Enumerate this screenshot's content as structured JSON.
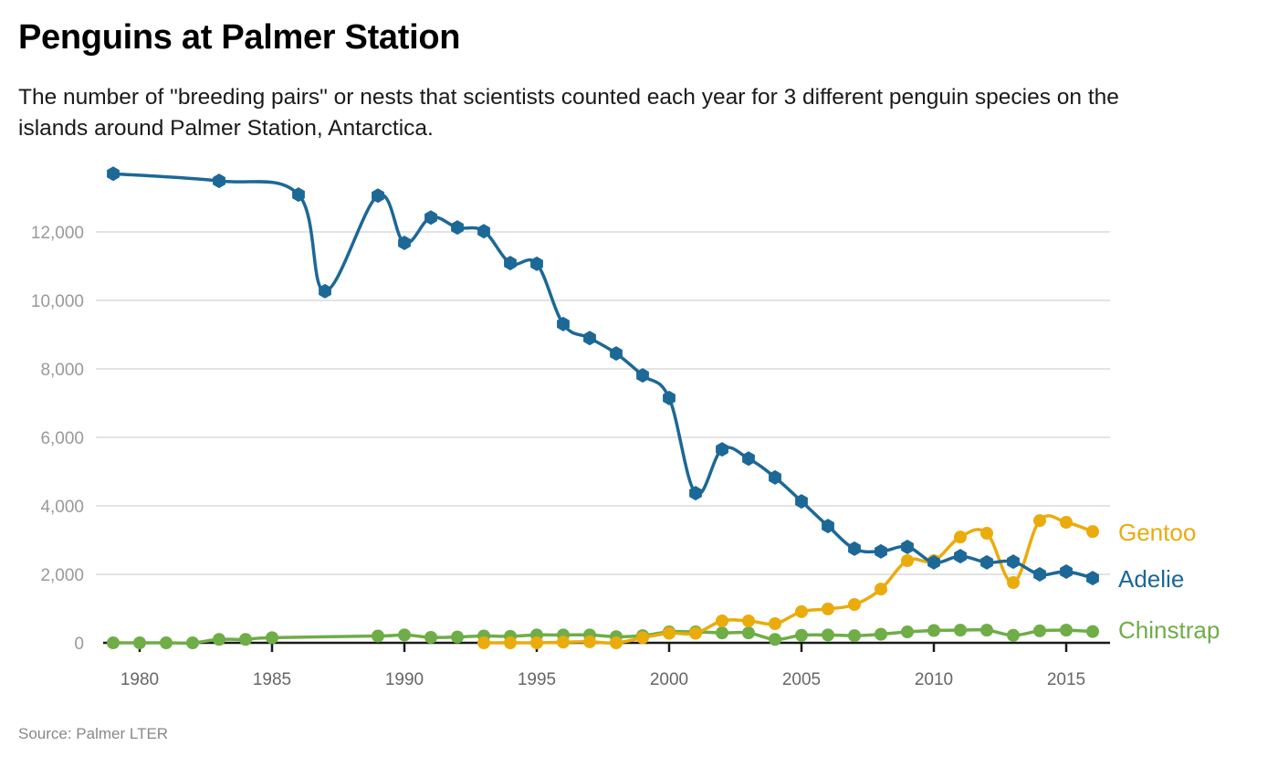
{
  "chart_data": {
    "type": "line",
    "title": "Penguins at Palmer Station",
    "subtitle": "The number of \"breeding pairs\" or nests that scientists counted each year for 3 different penguin species on the islands around Palmer Station, Antarctica.",
    "source": "Source: Palmer LTER",
    "xlabel": "",
    "ylabel": "",
    "xlim": [
      1978.6,
      2016.8
    ],
    "ylim": [
      0,
      14000
    ],
    "grid": true,
    "legend": "right-direct-labels",
    "y_ticks": [
      {
        "value": 0,
        "label": "0"
      },
      {
        "value": 2000,
        "label": "2,000"
      },
      {
        "value": 4000,
        "label": "4,000"
      },
      {
        "value": 6000,
        "label": "6,000"
      },
      {
        "value": 8000,
        "label": "8,000"
      },
      {
        "value": 10000,
        "label": "10,000"
      },
      {
        "value": 12000,
        "label": "12,000"
      }
    ],
    "x_ticks": [
      {
        "value": 1980,
        "label": "1980"
      },
      {
        "value": 1985,
        "label": "1985"
      },
      {
        "value": 1990,
        "label": "1990"
      },
      {
        "value": 1995,
        "label": "1995"
      },
      {
        "value": 2000,
        "label": "2000"
      },
      {
        "value": 2005,
        "label": "2005"
      },
      {
        "value": 2010,
        "label": "2010"
      },
      {
        "value": 2015,
        "label": "2015"
      }
    ],
    "series": [
      {
        "name": "Chinstrap",
        "color": "#6fad46",
        "marker": "circle",
        "x": [
          1979,
          1980,
          1981,
          1982,
          1983,
          1984,
          1985,
          1989,
          1990,
          1991,
          1992,
          1993,
          1994,
          1995,
          1996,
          1997,
          1998,
          1999,
          2000,
          2001,
          2002,
          2003,
          2004,
          2005,
          2006,
          2007,
          2008,
          2009,
          2010,
          2011,
          2012,
          2013,
          2014,
          2015,
          2016
        ],
        "values": [
          0,
          0,
          0,
          0,
          100,
          100,
          150,
          200,
          230,
          160,
          170,
          200,
          190,
          230,
          230,
          230,
          180,
          210,
          320,
          320,
          290,
          290,
          100,
          220,
          230,
          210,
          250,
          320,
          360,
          370,
          370,
          220,
          350,
          370,
          330
        ]
      },
      {
        "name": "Gentoo",
        "color": "#eaac0c",
        "marker": "circle",
        "x": [
          1993,
          1994,
          1995,
          1996,
          1997,
          1998,
          1999,
          2000,
          2001,
          2002,
          2003,
          2004,
          2005,
          2006,
          2007,
          2008,
          2009,
          2010,
          2011,
          2012,
          2013,
          2014,
          2015,
          2016
        ],
        "values": [
          0,
          0,
          0,
          20,
          30,
          0,
          150,
          280,
          280,
          640,
          640,
          560,
          910,
          990,
          1120,
          1570,
          2400,
          2400,
          3090,
          3200,
          1760,
          3570,
          3520,
          3250
        ]
      },
      {
        "name": "Adelie",
        "color": "#1c6896",
        "marker": "hexagon",
        "x": [
          1979,
          1983,
          1986,
          1987,
          1989,
          1990,
          1991,
          1992,
          1993,
          1994,
          1995,
          1996,
          1997,
          1998,
          1999,
          2000,
          2001,
          2002,
          2003,
          2004,
          2005,
          2006,
          2007,
          2008,
          2009,
          2010,
          2011,
          2012,
          2013,
          2014,
          2015,
          2016
        ],
        "values": [
          13700,
          13490,
          13090,
          10270,
          13060,
          11680,
          12420,
          12130,
          12020,
          11090,
          11070,
          9310,
          8900,
          8450,
          7810,
          7150,
          4370,
          5650,
          5380,
          4830,
          4130,
          3410,
          2750,
          2670,
          2800,
          2350,
          2530,
          2350,
          2370,
          2000,
          2080,
          1890
        ]
      }
    ]
  }
}
